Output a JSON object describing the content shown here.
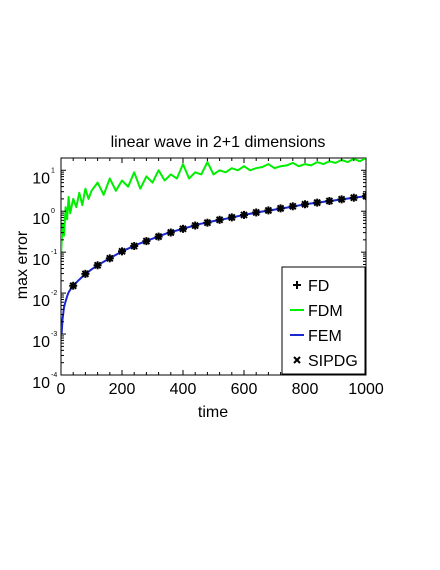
{
  "chart_data": {
    "type": "line",
    "title": "linear wave in 2+1 dimensions",
    "xlabel": "time",
    "ylabel": "max error",
    "xlim": [
      0,
      1000
    ],
    "ylim": [
      -4,
      1.3
    ],
    "y_scale": "log",
    "grid": false,
    "legend_placement": "bottom-right",
    "x_ticks": [
      {
        "value": 0,
        "label": "0"
      },
      {
        "value": 200,
        "label": "200"
      },
      {
        "value": 400,
        "label": "400"
      },
      {
        "value": 600,
        "label": "600"
      },
      {
        "value": 800,
        "label": "800"
      },
      {
        "value": 1000,
        "label": "1000"
      }
    ],
    "y_ticks": [
      {
        "value": -4,
        "base": "10",
        "exp": "-4"
      },
      {
        "value": -3,
        "base": "10",
        "exp": "-3"
      },
      {
        "value": -2,
        "base": "10",
        "exp": "-2"
      },
      {
        "value": -1,
        "base": "10",
        "exp": "-1"
      },
      {
        "value": 0,
        "base": "10",
        "exp": "0"
      },
      {
        "value": 1,
        "base": "10",
        "exp": "1"
      }
    ],
    "series": [
      {
        "name": "FD",
        "style": "marker-plus",
        "color": "#000000",
        "x": [
          40,
          80,
          120,
          160,
          200,
          240,
          280,
          320,
          360,
          400,
          440,
          480,
          520,
          560,
          600,
          640,
          680,
          720,
          760,
          800,
          840,
          880,
          920,
          960,
          1000
        ],
        "y": [
          -1.82,
          -1.53,
          -1.32,
          -1.15,
          -0.98,
          -0.85,
          -0.73,
          -0.62,
          -0.52,
          -0.43,
          -0.35,
          -0.28,
          -0.21,
          -0.15,
          -0.09,
          -0.03,
          0.02,
          0.07,
          0.12,
          0.17,
          0.21,
          0.25,
          0.29,
          0.33,
          0.37
        ]
      },
      {
        "name": "FDM",
        "style": "line",
        "color": "#00ee00",
        "x": [
          0,
          5,
          10,
          15,
          20,
          25,
          30,
          40,
          50,
          60,
          70,
          80,
          90,
          100,
          120,
          140,
          160,
          180,
          200,
          220,
          240,
          260,
          280,
          300,
          320,
          340,
          360,
          380,
          400,
          420,
          440,
          460,
          480,
          500,
          520,
          540,
          560,
          580,
          600,
          620,
          640,
          660,
          680,
          700,
          720,
          740,
          760,
          780,
          800,
          820,
          840,
          860,
          880,
          900,
          920,
          940,
          960,
          980,
          1000
        ],
        "y": [
          -1.1,
          -0.3,
          -0.6,
          0.1,
          -0.2,
          0.35,
          -0.05,
          0.3,
          0.1,
          0.45,
          0.15,
          0.55,
          0.3,
          0.5,
          0.7,
          0.4,
          0.8,
          0.5,
          0.75,
          0.6,
          0.95,
          0.55,
          0.85,
          0.7,
          1.0,
          0.75,
          0.9,
          0.8,
          1.15,
          0.8,
          0.95,
          0.9,
          1.2,
          0.9,
          1.0,
          0.95,
          1.05,
          1.0,
          1.1,
          1.0,
          1.05,
          1.08,
          1.15,
          1.05,
          1.1,
          1.12,
          1.18,
          1.1,
          1.15,
          1.12,
          1.2,
          1.15,
          1.22,
          1.18,
          1.25,
          1.2,
          1.28,
          1.22,
          1.3
        ]
      },
      {
        "name": "FEM",
        "style": "line",
        "color": "#1a28d0",
        "x": [
          2,
          5,
          10,
          15,
          20,
          25,
          30,
          40,
          60,
          80,
          100,
          120,
          160,
          200,
          250,
          300,
          350,
          400,
          450,
          500,
          550,
          600,
          650,
          700,
          750,
          800,
          850,
          900,
          950,
          1000
        ],
        "y": [
          -3.0,
          -2.65,
          -2.35,
          -2.2,
          -2.08,
          -1.98,
          -1.92,
          -1.82,
          -1.67,
          -1.53,
          -1.42,
          -1.32,
          -1.15,
          -0.98,
          -0.81,
          -0.67,
          -0.53,
          -0.43,
          -0.32,
          -0.24,
          -0.17,
          -0.09,
          -0.02,
          0.04,
          0.1,
          0.17,
          0.22,
          0.27,
          0.32,
          0.37
        ]
      },
      {
        "name": "SIPDG",
        "style": "marker-x",
        "color": "#000000",
        "x": [
          40,
          80,
          120,
          160,
          200,
          240,
          280,
          320,
          360,
          400,
          440,
          480,
          520,
          560,
          600,
          640,
          680,
          720,
          760,
          800,
          840,
          880,
          920,
          960,
          1000
        ],
        "y": [
          -1.82,
          -1.53,
          -1.32,
          -1.15,
          -0.98,
          -0.85,
          -0.73,
          -0.62,
          -0.52,
          -0.43,
          -0.35,
          -0.28,
          -0.21,
          -0.15,
          -0.09,
          -0.03,
          0.02,
          0.07,
          0.12,
          0.17,
          0.21,
          0.25,
          0.29,
          0.33,
          0.37
        ]
      }
    ]
  }
}
